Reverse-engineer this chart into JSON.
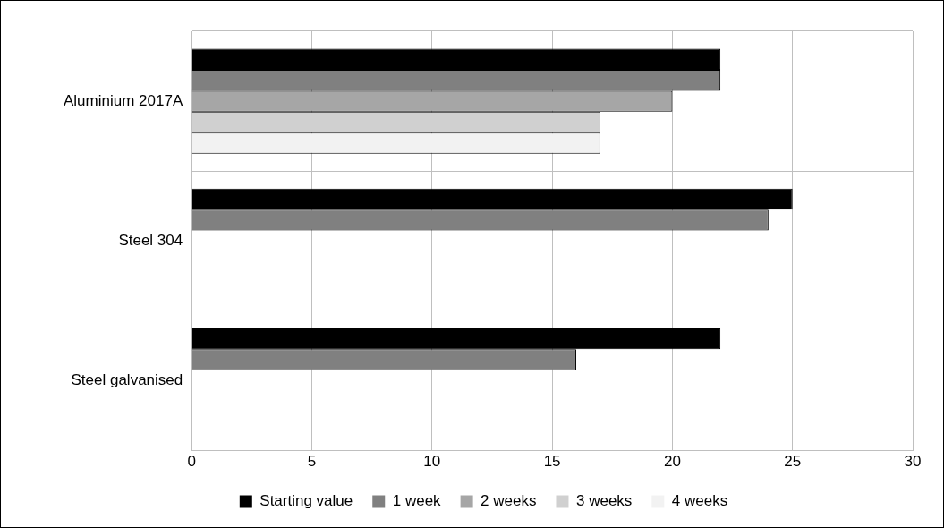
{
  "chart_data": {
    "type": "bar",
    "orientation": "horizontal",
    "categories": [
      "Aluminium 2017A",
      "Steel 304",
      "Steel galvanised"
    ],
    "series": [
      {
        "name": "Starting value",
        "color": "#000000",
        "values": [
          22,
          25,
          22
        ]
      },
      {
        "name": "1 week",
        "color": "#808080",
        "values": [
          22,
          24,
          16
        ]
      },
      {
        "name": "2 weeks",
        "color": "#a6a6a6",
        "values": [
          20,
          null,
          null
        ]
      },
      {
        "name": "3 weeks",
        "color": "#d0d0d0",
        "values": [
          17,
          null,
          null
        ]
      },
      {
        "name": "4 weeks",
        "color": "#f2f2f2",
        "values": [
          17,
          null,
          null
        ]
      }
    ],
    "xlim": [
      0,
      30
    ],
    "xticks": [
      0,
      5,
      10,
      15,
      20,
      25,
      30
    ],
    "grid": true,
    "legend": "bottom"
  }
}
